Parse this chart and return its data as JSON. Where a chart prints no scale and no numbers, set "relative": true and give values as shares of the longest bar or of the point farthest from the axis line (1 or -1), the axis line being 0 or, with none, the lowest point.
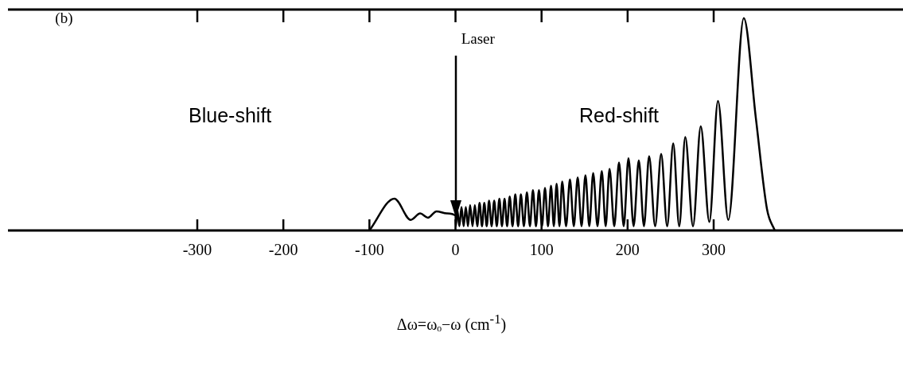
{
  "chart_data": {
    "type": "line",
    "relative": true,
    "xlabel": "Δω=ωₒ−ω (cm$^{-1}$)",
    "xlim": [
      -520,
      520
    ],
    "xticks": [
      -300,
      -200,
      -100,
      0,
      100,
      200,
      300
    ],
    "grid": false,
    "legend": false,
    "tick_labels": "x",
    "marker": "none",
    "line_style": "solid",
    "annotations": [
      "(b)",
      "Blue-shift",
      "Red-shift",
      "Laser"
    ],
    "series": [
      {
        "color": "#000000",
        "x": [
          -100,
          -71,
          -52,
          -41,
          -32,
          -22,
          -10,
          0,
          0.5,
          2,
          4.5,
          7,
          9.5,
          12,
          14.5,
          17,
          19.8,
          22.5,
          25.3,
          28,
          30.8,
          33.5,
          36.3,
          39,
          42,
          45,
          48,
          51,
          54,
          57,
          60,
          63,
          66.3,
          69.5,
          72.8,
          76,
          79.5,
          83,
          86.5,
          90,
          93.5,
          97,
          100.5,
          104,
          107.5,
          111,
          114.3,
          117.5,
          120.8,
          124,
          128.5,
          133,
          137.5,
          142,
          146.5,
          151,
          155.5,
          160,
          165,
          170,
          174.5,
          179,
          184.5,
          190,
          195.5,
          201,
          207,
          213,
          219,
          225,
          232,
          239,
          246,
          253,
          260,
          267,
          276,
          285,
          295,
          305,
          317,
          335,
          349,
          362,
          371
        ],
        "values": [
          0,
          0.15,
          0.05,
          0.08,
          0.06,
          0.09,
          0.08,
          0.07,
          0.02,
          0.1,
          0.02,
          0.11,
          0.02,
          0.11,
          0.02,
          0.12,
          0.02,
          0.12,
          0.02,
          0.13,
          0.02,
          0.13,
          0.02,
          0.14,
          0.02,
          0.14,
          0.02,
          0.15,
          0.02,
          0.15,
          0.02,
          0.16,
          0.02,
          0.17,
          0.02,
          0.17,
          0.02,
          0.18,
          0.02,
          0.19,
          0.02,
          0.19,
          0.02,
          0.2,
          0.02,
          0.21,
          0.02,
          0.22,
          0.02,
          0.23,
          0.02,
          0.24,
          0.02,
          0.25,
          0.02,
          0.26,
          0.02,
          0.27,
          0.02,
          0.28,
          0.02,
          0.29,
          0.02,
          0.32,
          0.02,
          0.34,
          0.02,
          0.33,
          0.02,
          0.35,
          0.02,
          0.36,
          0.02,
          0.41,
          0.02,
          0.44,
          0.02,
          0.49,
          0.04,
          0.61,
          0.05,
          1,
          0.53,
          0.1,
          0
        ]
      }
    ]
  }
}
